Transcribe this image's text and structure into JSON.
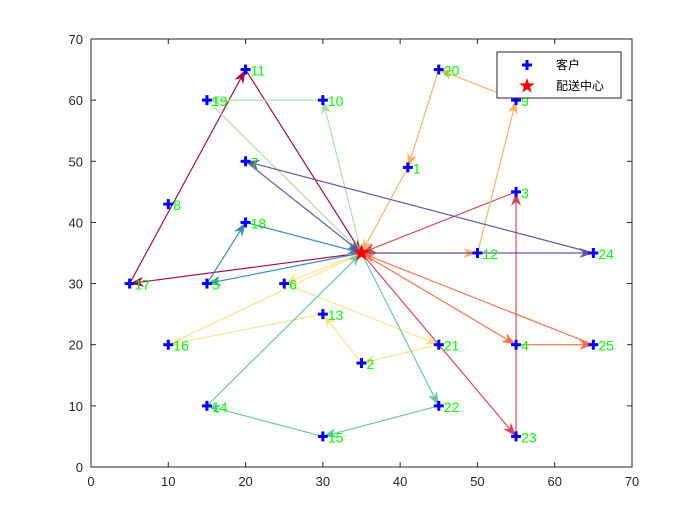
{
  "chart_data": {
    "type": "scatter",
    "xlim": [
      0,
      70
    ],
    "ylim": [
      0,
      70
    ],
    "xticks": [
      0,
      10,
      20,
      30,
      40,
      50,
      60,
      70
    ],
    "yticks": [
      0,
      10,
      20,
      30,
      40,
      50,
      60,
      70
    ],
    "grid": false,
    "legend": {
      "placement": "top-right",
      "entries": [
        {
          "label": "客户",
          "marker": "plus",
          "color": "#0000ff"
        },
        {
          "label": "配送中心",
          "marker": "star",
          "color": "#ff0000"
        }
      ]
    },
    "depot": {
      "x": 35,
      "y": 35
    },
    "customers": [
      {
        "id": "1",
        "x": 41,
        "y": 49
      },
      {
        "id": "2",
        "x": 35,
        "y": 17
      },
      {
        "id": "3",
        "x": 55,
        "y": 45
      },
      {
        "id": "4",
        "x": 55,
        "y": 20
      },
      {
        "id": "5",
        "x": 15,
        "y": 30
      },
      {
        "id": "6",
        "x": 25,
        "y": 30
      },
      {
        "id": "7",
        "x": 20,
        "y": 50
      },
      {
        "id": "8",
        "x": 10,
        "y": 43
      },
      {
        "id": "9",
        "x": 55,
        "y": 60
      },
      {
        "id": "10",
        "x": 30,
        "y": 60
      },
      {
        "id": "11",
        "x": 20,
        "y": 65
      },
      {
        "id": "12",
        "x": 50,
        "y": 35
      },
      {
        "id": "13",
        "x": 30,
        "y": 25
      },
      {
        "id": "14",
        "x": 15,
        "y": 10
      },
      {
        "id": "15",
        "x": 30,
        "y": 5
      },
      {
        "id": "16",
        "x": 10,
        "y": 20
      },
      {
        "id": "17",
        "x": 5,
        "y": 30
      },
      {
        "id": "18",
        "x": 20,
        "y": 40
      },
      {
        "id": "19",
        "x": 15,
        "y": 60
      },
      {
        "id": "20",
        "x": 45,
        "y": 65
      },
      {
        "id": "21",
        "x": 45,
        "y": 20
      },
      {
        "id": "22",
        "x": 45,
        "y": 10
      },
      {
        "id": "23",
        "x": 55,
        "y": 5
      },
      {
        "id": "24",
        "x": 65,
        "y": 35
      },
      {
        "id": "25",
        "x": 65,
        "y": 20
      }
    ],
    "routes": [
      {
        "color": "#9e0142",
        "stops": [
          "17",
          "11"
        ]
      },
      {
        "color": "#d53e4f",
        "stops": [
          "23",
          "3"
        ]
      },
      {
        "color": "#f46d43",
        "stops": [
          "4",
          "25"
        ]
      },
      {
        "color": "#fdae61",
        "stops": [
          "12",
          "9",
          "20",
          "1"
        ]
      },
      {
        "color": "#fee08b",
        "stops": [
          "6",
          "21",
          "2",
          "13",
          "16"
        ]
      },
      {
        "color": "#abdda4",
        "stops": [
          "10",
          "19"
        ]
      },
      {
        "color": "#66c2a5",
        "stops": [
          "22",
          "15",
          "14"
        ]
      },
      {
        "color": "#3288bd",
        "stops": [
          "5",
          "18"
        ]
      },
      {
        "color": "#5e4fa2",
        "stops": [
          "24",
          "7"
        ]
      }
    ]
  }
}
